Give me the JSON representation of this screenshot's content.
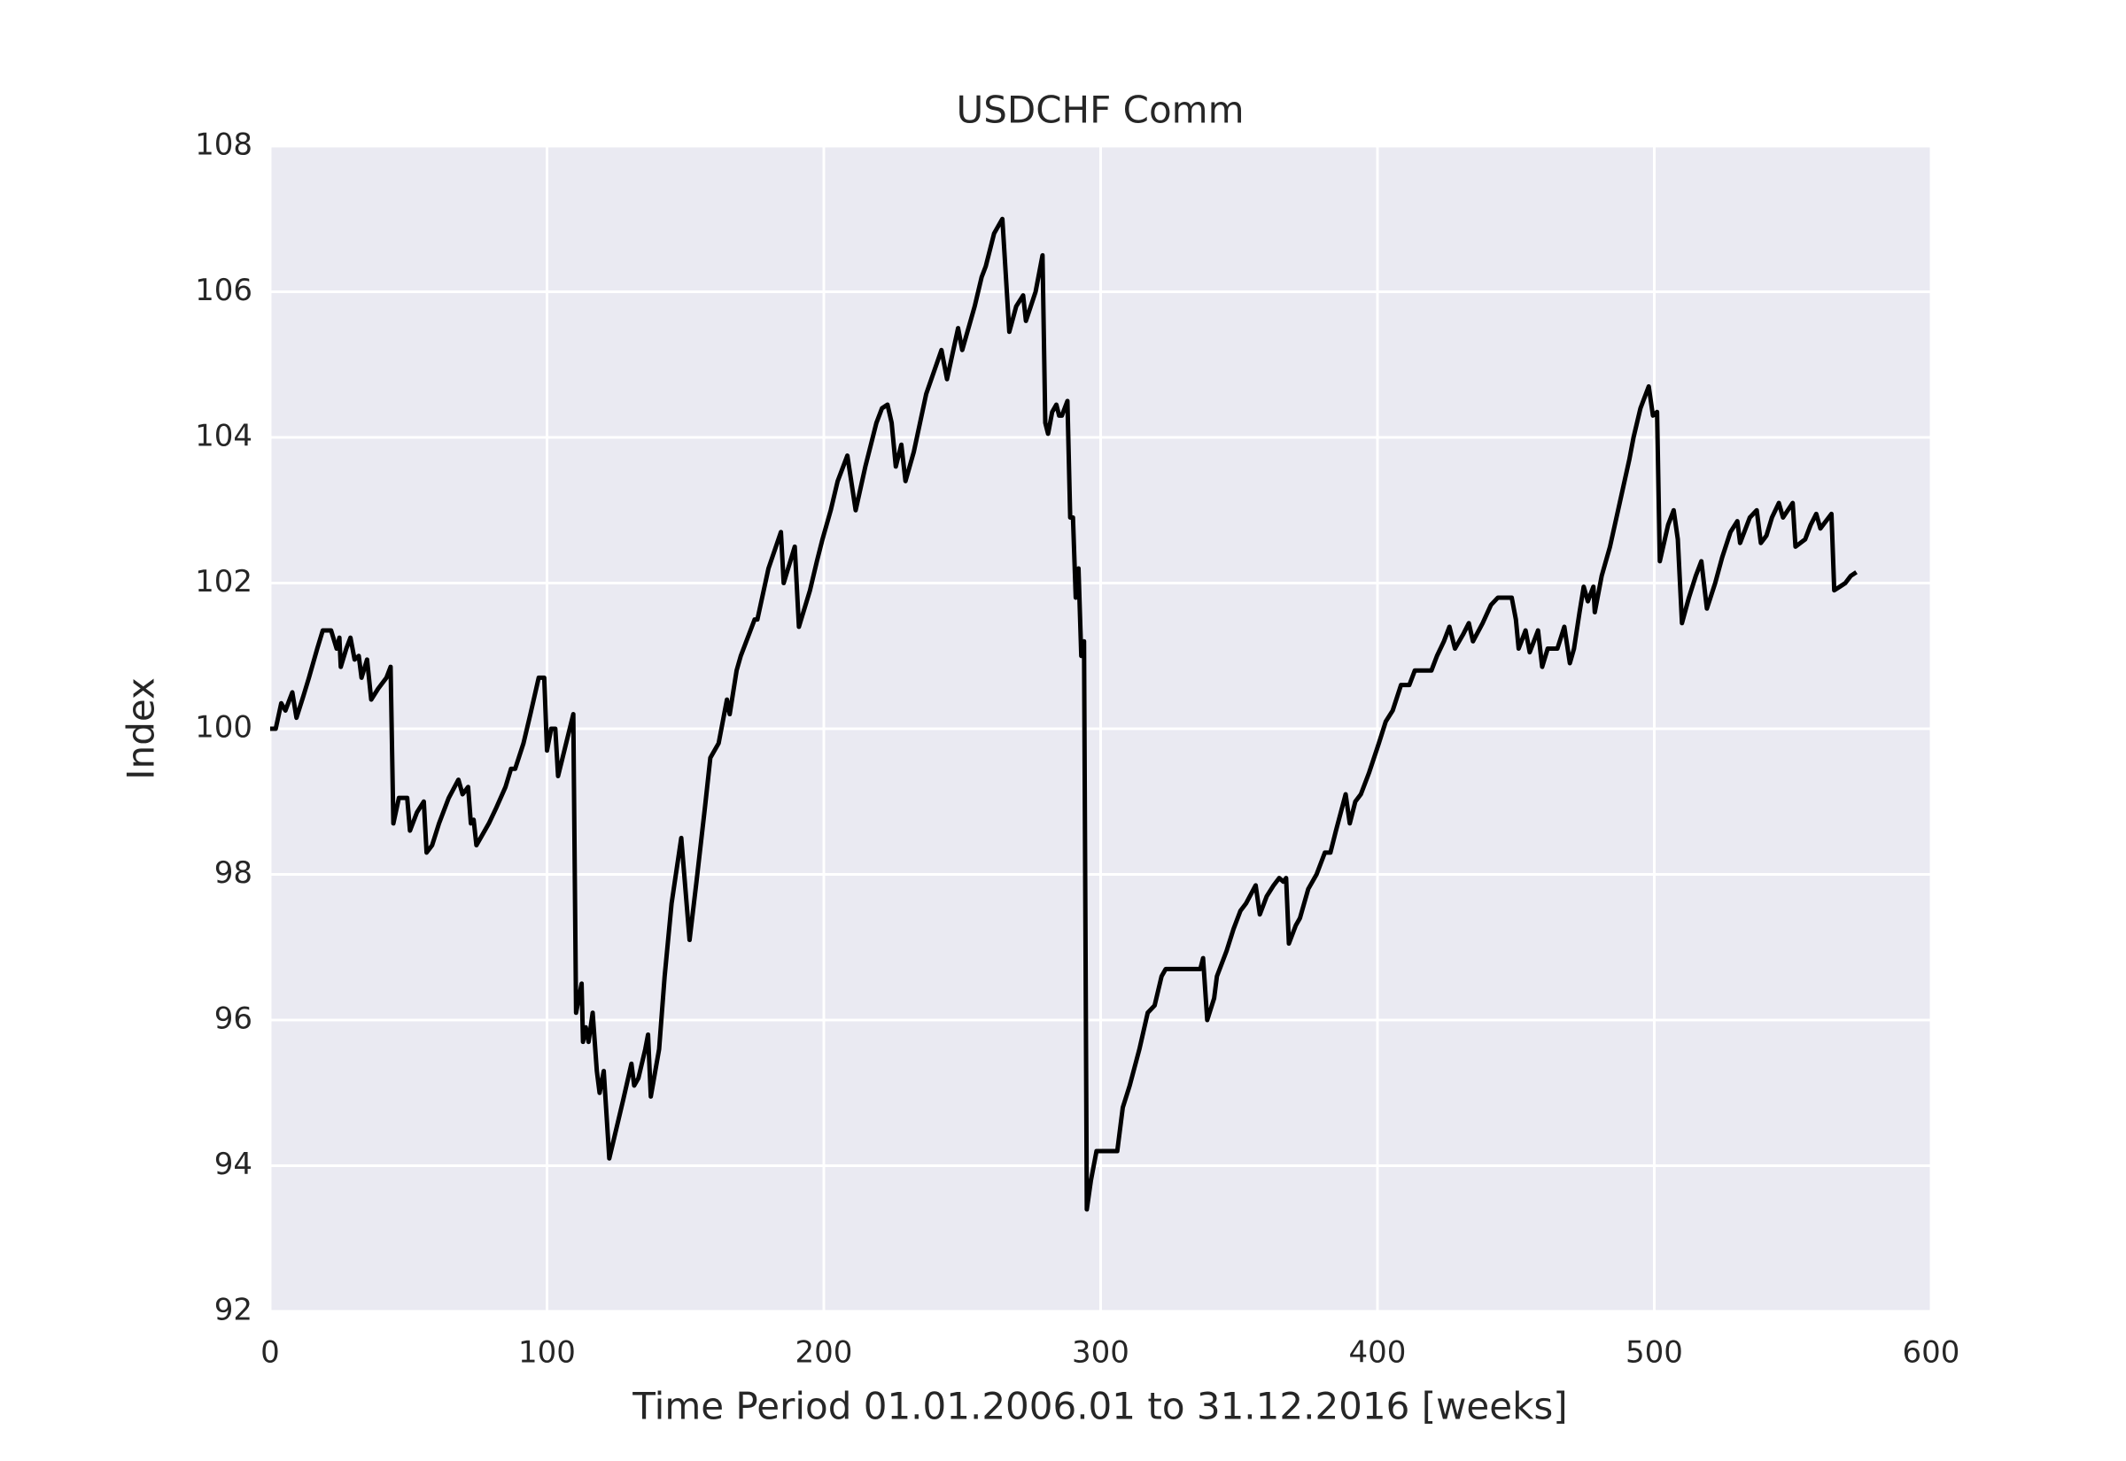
{
  "chart_data": {
    "type": "line",
    "title": "USDCHF Comm",
    "x_label": "Time Period 01.01.2006.01 to 31.12.2016 [weeks]",
    "y_label": "Index",
    "xlim": [
      0,
      600
    ],
    "xticks": [
      0,
      100,
      200,
      300,
      400,
      500,
      600
    ],
    "ylim": [
      92,
      108
    ],
    "yticks": [
      92,
      94,
      96,
      98,
      100,
      102,
      104,
      106,
      108
    ],
    "grid": true,
    "x": [
      0,
      2,
      4,
      5.5,
      8,
      9.5,
      12,
      14,
      17,
      19,
      22,
      24,
      25,
      25.5,
      27.5,
      29,
      30.5,
      32,
      33,
      35,
      36.5,
      39,
      42,
      43.5,
      44.5,
      46.5,
      49.5,
      50.5,
      53,
      55.5,
      56.5,
      58.5,
      61,
      64.5,
      68,
      69.5,
      71.5,
      72.5,
      73.5,
      74.5,
      79,
      81.5,
      85,
      87,
      88.5,
      91.5,
      94,
      97,
      99,
      100,
      101.5,
      103,
      104,
      109.5,
      110.5,
      112.5,
      113,
      114,
      115,
      116.5,
      118,
      119,
      120.5,
      122.5,
      125,
      127.5,
      130.5,
      131.5,
      133,
      135.5,
      136.5,
      137.5,
      140.5,
      142.5,
      145,
      148.5,
      151.5,
      154,
      157,
      159,
      162,
      165,
      166,
      168.5,
      170,
      173,
      175,
      176,
      180,
      184.5,
      185.5,
      189.5,
      191,
      195,
      197.5,
      199.5,
      202.5,
      205,
      208.5,
      211.5,
      215,
      219,
      221,
      223,
      224.5,
      226,
      228,
      229.5,
      232.5,
      237,
      242.5,
      244.5,
      248.5,
      250,
      254.5,
      257,
      258.5,
      261.5,
      264.5,
      267,
      269.5,
      272,
      273,
      276.5,
      279,
      280,
      281,
      282.5,
      284,
      285,
      286,
      288,
      289,
      290,
      291,
      292,
      293,
      294,
      295,
      296.5,
      298.5,
      306,
      308,
      310.5,
      314,
      317,
      319.5,
      322,
      323.5,
      336,
      337,
      338.5,
      341,
      342,
      345.5,
      348,
      350.5,
      352.5,
      356,
      357.5,
      360,
      362.5,
      364.5,
      366,
      367,
      368,
      370.5,
      372,
      375,
      378,
      381,
      383,
      385,
      388.5,
      390,
      392,
      394,
      397,
      400.5,
      403,
      405.5,
      408.5,
      411.5,
      413.5,
      419.5,
      421.5,
      424,
      426,
      428,
      431,
      433,
      434.5,
      438,
      441,
      443.5,
      448.5,
      450,
      451,
      453.5,
      455,
      458,
      459.5,
      461.5,
      465,
      467.5,
      469.5,
      471,
      473,
      474.5,
      476,
      478,
      478.5,
      481,
      484,
      487.5,
      491,
      492.5,
      495,
      498,
      499.5,
      501,
      502,
      505,
      507,
      508.5,
      510,
      512.5,
      515,
      517,
      519,
      522,
      524.5,
      527.5,
      530,
      531,
      534.5,
      537,
      538.5,
      540.5,
      542.5,
      545,
      546.5,
      550,
      551,
      554.5,
      556.5,
      558.5,
      560,
      564,
      565,
      567,
      569,
      571,
      573
    ],
    "series": [
      {
        "color": "#000000",
        "values": [
          100,
          100,
          100.35,
          100.25,
          100.5,
          100.15,
          100.45,
          100.7,
          101.1,
          101.35,
          101.35,
          101.1,
          101.25,
          100.85,
          101.1,
          101.25,
          100.95,
          101,
          100.7,
          100.95,
          100.4,
          100.55,
          100.7,
          100.85,
          98.7,
          99.05,
          99.05,
          98.6,
          98.85,
          99,
          98.3,
          98.4,
          98.7,
          99.05,
          99.3,
          99.1,
          99.2,
          98.7,
          98.75,
          98.4,
          98.7,
          98.9,
          99.2,
          99.45,
          99.45,
          99.8,
          100.2,
          100.7,
          100.7,
          99.7,
          100,
          100,
          99.35,
          100.2,
          96.1,
          96.5,
          95.7,
          95.9,
          95.7,
          96.1,
          95.3,
          95,
          95.3,
          94.1,
          94.5,
          94.9,
          95.4,
          95.1,
          95.2,
          95.6,
          95.8,
          94.95,
          95.6,
          96.6,
          97.6,
          98.5,
          97.1,
          97.9,
          98.9,
          99.6,
          99.8,
          100.4,
          100.2,
          100.8,
          101,
          101.3,
          101.5,
          101.5,
          102.2,
          102.7,
          102,
          102.5,
          101.4,
          101.9,
          102.3,
          102.6,
          103,
          103.4,
          103.75,
          103,
          103.6,
          104.2,
          104.4,
          104.45,
          104.2,
          103.6,
          103.9,
          103.4,
          103.8,
          104.6,
          105.2,
          104.8,
          105.5,
          105.2,
          105.8,
          106.2,
          106.35,
          106.8,
          107,
          105.45,
          105.8,
          105.95,
          105.6,
          106,
          106.5,
          104.2,
          104.05,
          104.35,
          104.45,
          104.3,
          104.3,
          104.5,
          102.9,
          102.9,
          101.8,
          102.2,
          101,
          101.2,
          93.4,
          93.8,
          94.2,
          94.2,
          94.8,
          95.1,
          95.6,
          96.1,
          96.2,
          96.6,
          96.7,
          96.7,
          96.85,
          96,
          96.3,
          96.6,
          96.95,
          97.25,
          97.5,
          97.6,
          97.85,
          97.45,
          97.7,
          97.85,
          97.95,
          97.9,
          97.95,
          97.05,
          97.3,
          97.4,
          97.8,
          98,
          98.3,
          98.3,
          98.6,
          99.1,
          98.7,
          99,
          99.1,
          99.4,
          99.8,
          100.1,
          100.25,
          100.6,
          100.6,
          100.8,
          100.8,
          101,
          101.2,
          101.4,
          101.1,
          101.3,
          101.45,
          101.2,
          101.45,
          101.7,
          101.8,
          101.8,
          101.5,
          101.1,
          101.35,
          101.05,
          101.35,
          100.85,
          101.1,
          101.1,
          101.4,
          100.9,
          101.1,
          101.6,
          101.95,
          101.75,
          101.95,
          101.6,
          102.1,
          102.5,
          103.1,
          103.7,
          104,
          104.4,
          104.7,
          104.3,
          104.35,
          102.3,
          102.8,
          103,
          102.6,
          101.45,
          101.8,
          102.1,
          102.3,
          101.65,
          102,
          102.35,
          102.7,
          102.85,
          102.55,
          102.9,
          103,
          102.55,
          102.65,
          102.9,
          103.1,
          102.9,
          103.1,
          102.5,
          102.6,
          102.8,
          102.95,
          102.75,
          102.95,
          101.9,
          101.95,
          102,
          102.1,
          102.15
        ]
      }
    ]
  }
}
